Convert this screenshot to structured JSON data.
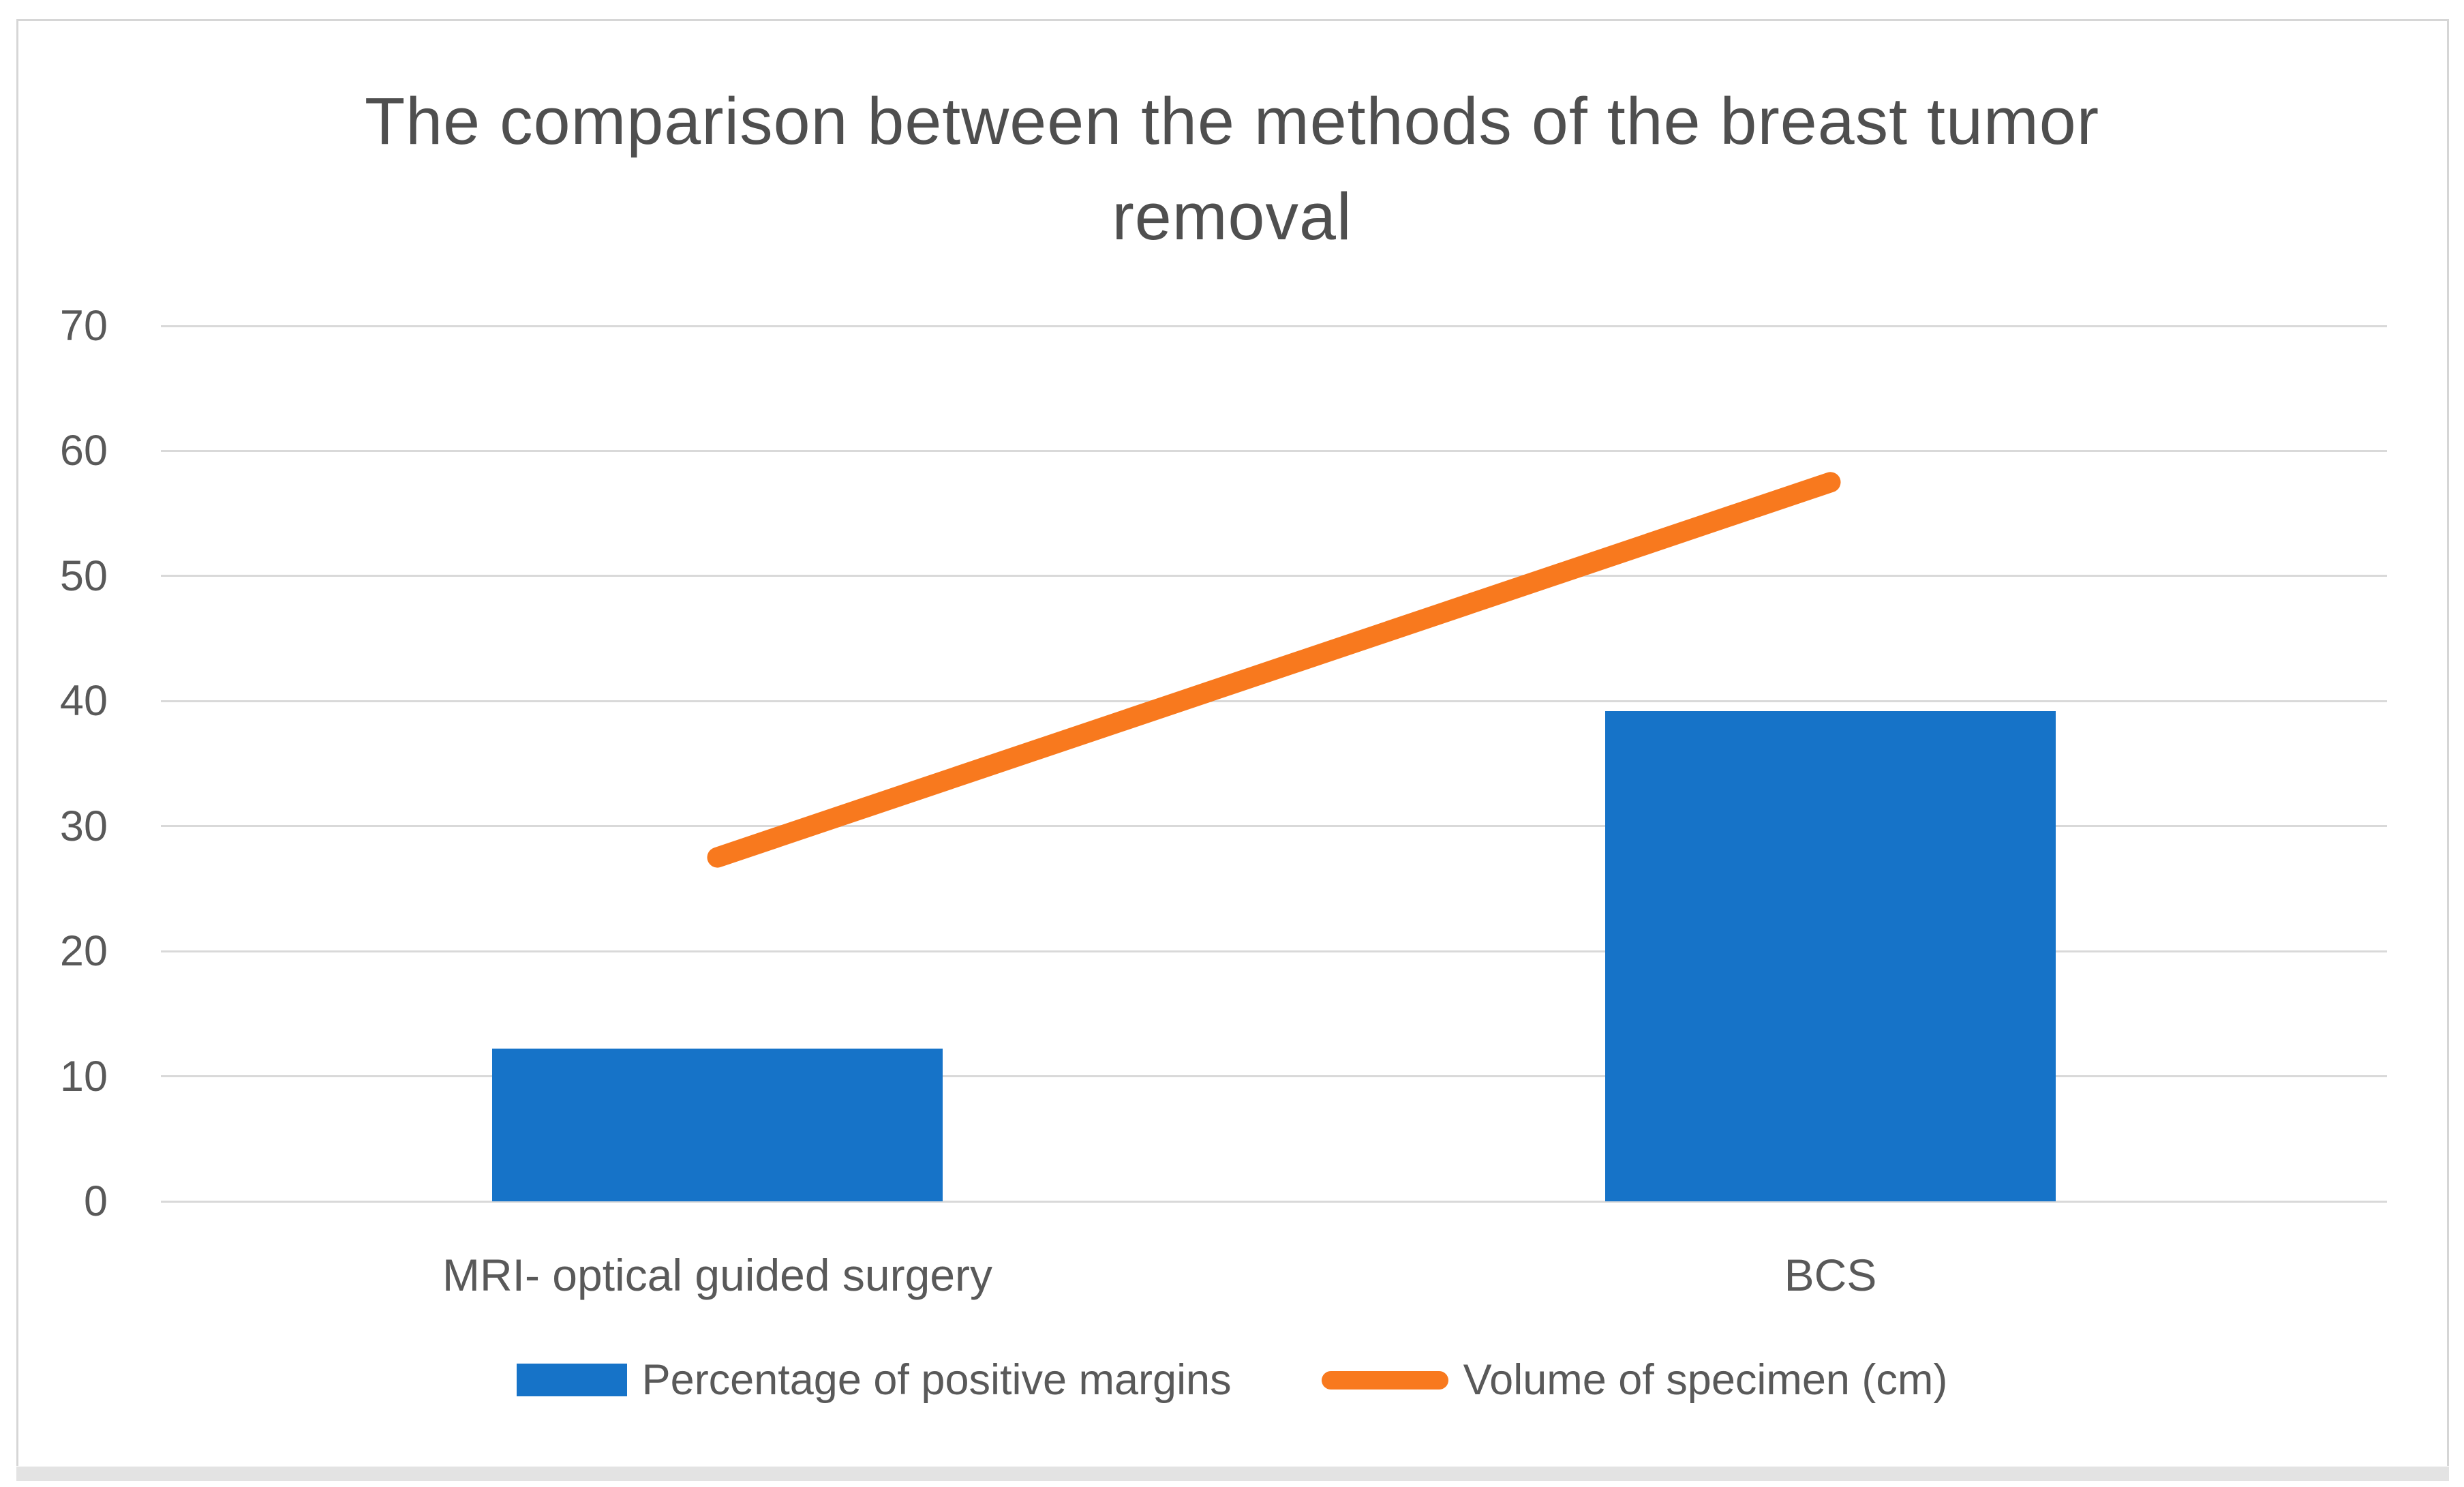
{
  "figure": {
    "title_lines": [
      "The comparison between the methods of the breast tumor",
      "removal"
    ]
  },
  "chart_data": {
    "type": "combo",
    "title": "The comparison between the methods of the breast tumor removal",
    "categories": [
      "MRI- optical guided surgery",
      "BCS"
    ],
    "series": [
      {
        "name": "Percentage of positive margins",
        "type": "bar",
        "color": "#1673C8",
        "values": [
          12.2,
          39.2
        ]
      },
      {
        "name": "Volume of specimen (cm)",
        "type": "line",
        "color": "#F8791E",
        "values": [
          27.5,
          57.5
        ]
      }
    ],
    "xlabel": "",
    "ylabel": "",
    "ylim": [
      0,
      70
    ],
    "yticks": [
      0,
      10,
      20,
      30,
      40,
      50,
      60,
      70
    ],
    "grid": true,
    "gridline_color": "#D9D9D9",
    "axis_text_color": "#595959",
    "title_color": "#4F4F4F",
    "legend_position": "bottom"
  }
}
